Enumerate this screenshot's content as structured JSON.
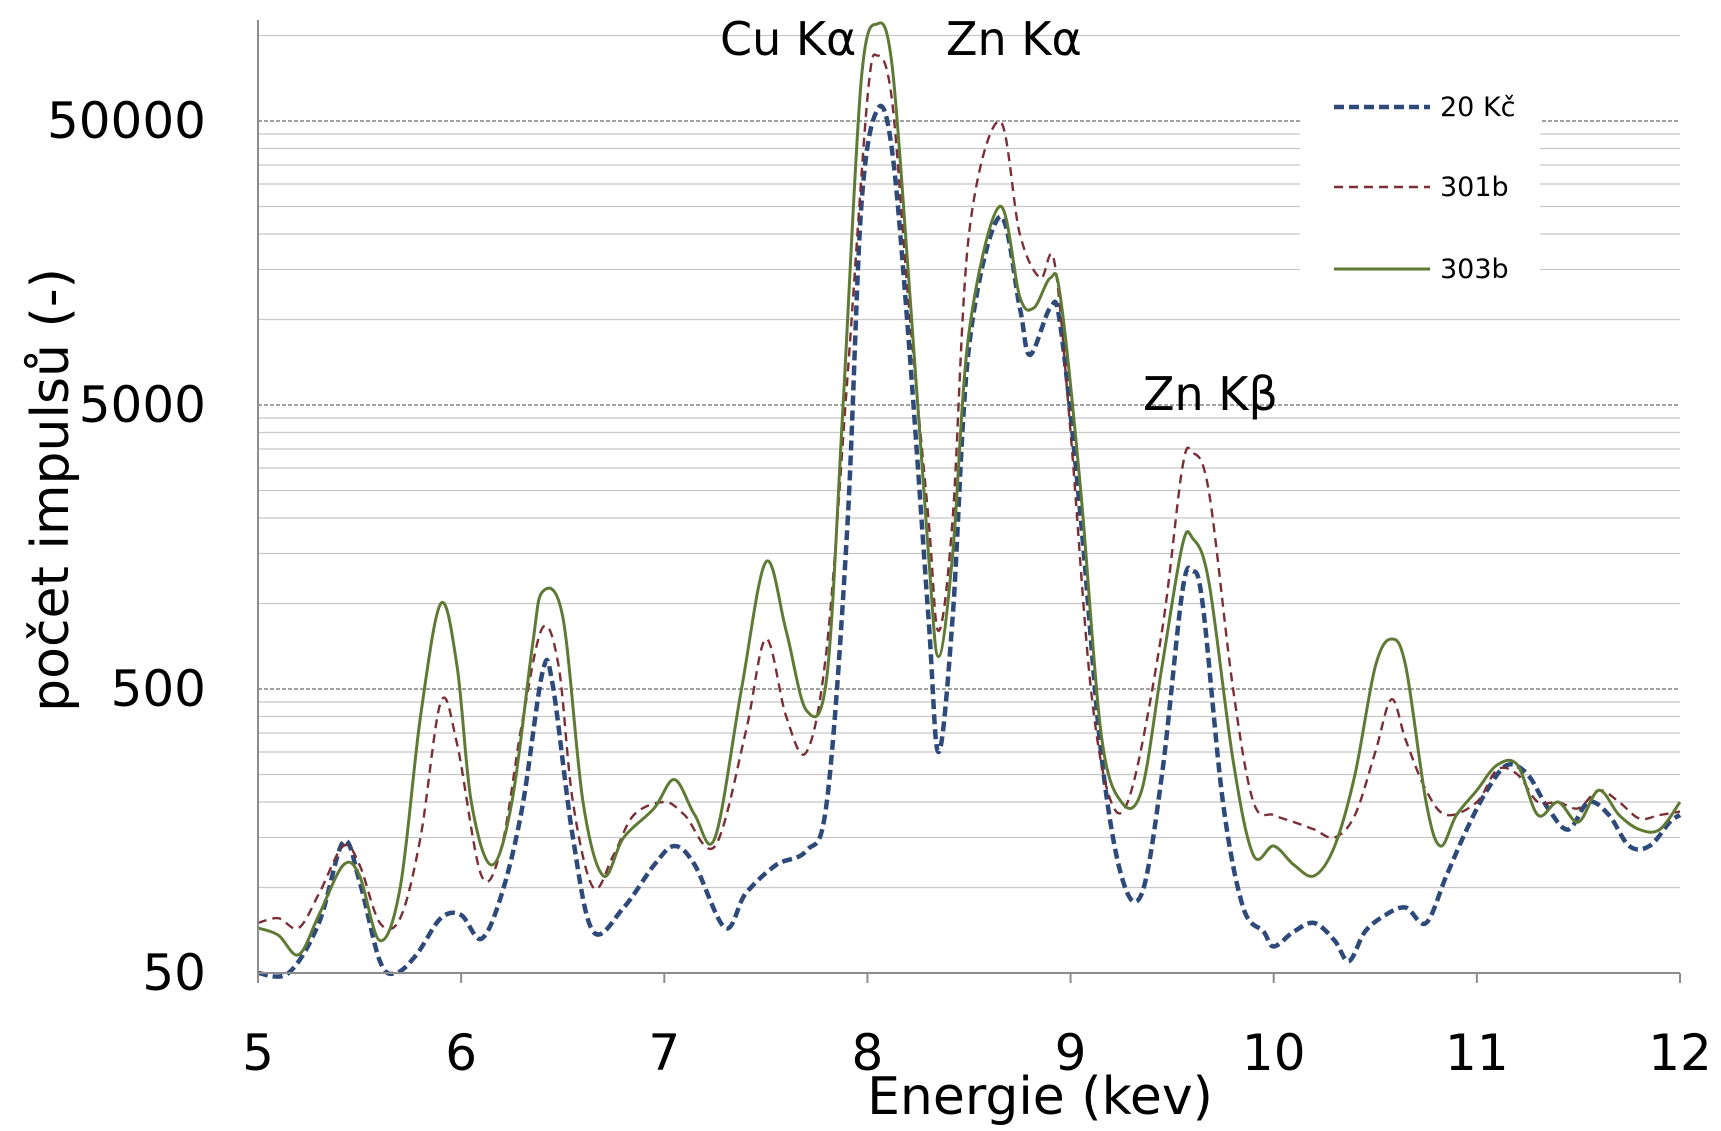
{
  "chart_data": {
    "type": "line",
    "xlabel": "Energie (kev)",
    "ylabel": "počet impulsů  (-)",
    "xlim": [
      5,
      12
    ],
    "ylim": [
      50,
      130000
    ],
    "yscale": "log",
    "x_ticks": [
      "5",
      "6",
      "7",
      "8",
      "9",
      "10",
      "11",
      "12"
    ],
    "y_ticks": [
      "50",
      "500",
      "5000",
      "50000"
    ],
    "grid": "horizontal",
    "legend_position": "top-right",
    "annotations": [
      {
        "text": "Cu Kα",
        "x": 7.85,
        "y": 95000
      },
      {
        "text": "Zn Kα",
        "x": 8.8,
        "y": 95000
      },
      {
        "text": "Zn Kβ",
        "x": 9.8,
        "y": 4800
      }
    ],
    "series": [
      {
        "name": "20 Kč",
        "color": "#2e4a7a",
        "dash": "dashed",
        "points": [
          [
            5.0,
            50
          ],
          [
            5.15,
            45
          ],
          [
            5.3,
            75
          ],
          [
            5.42,
            145
          ],
          [
            5.5,
            105
          ],
          [
            5.6,
            55
          ],
          [
            5.68,
            48
          ],
          [
            5.78,
            58
          ],
          [
            5.9,
            78
          ],
          [
            6.0,
            80
          ],
          [
            6.1,
            66
          ],
          [
            6.2,
            95
          ],
          [
            6.3,
            190
          ],
          [
            6.4,
            570
          ],
          [
            6.45,
            520
          ],
          [
            6.55,
            150
          ],
          [
            6.65,
            70
          ],
          [
            6.8,
            85
          ],
          [
            6.95,
            120
          ],
          [
            7.05,
            140
          ],
          [
            7.15,
            120
          ],
          [
            7.3,
            72
          ],
          [
            7.4,
            95
          ],
          [
            7.55,
            120
          ],
          [
            7.7,
            135
          ],
          [
            7.8,
            200
          ],
          [
            7.9,
            1800
          ],
          [
            7.97,
            25000
          ],
          [
            8.05,
            55000
          ],
          [
            8.12,
            40000
          ],
          [
            8.2,
            9000
          ],
          [
            8.3,
            900
          ],
          [
            8.35,
            300
          ],
          [
            8.42,
            900
          ],
          [
            8.5,
            8000
          ],
          [
            8.65,
            23000
          ],
          [
            8.75,
            11000
          ],
          [
            8.8,
            7500
          ],
          [
            8.9,
            11000
          ],
          [
            8.95,
            9500
          ],
          [
            9.05,
            2000
          ],
          [
            9.15,
            300
          ],
          [
            9.25,
            110
          ],
          [
            9.35,
            95
          ],
          [
            9.45,
            250
          ],
          [
            9.55,
            1100
          ],
          [
            9.6,
            1300
          ],
          [
            9.65,
            1000
          ],
          [
            9.75,
            200
          ],
          [
            9.85,
            85
          ],
          [
            9.95,
            70
          ],
          [
            10.0,
            62
          ],
          [
            10.1,
            70
          ],
          [
            10.2,
            75
          ],
          [
            10.3,
            65
          ],
          [
            10.37,
            55
          ],
          [
            10.45,
            70
          ],
          [
            10.55,
            80
          ],
          [
            10.65,
            85
          ],
          [
            10.75,
            75
          ],
          [
            10.85,
            110
          ],
          [
            10.95,
            160
          ],
          [
            11.05,
            220
          ],
          [
            11.15,
            270
          ],
          [
            11.25,
            250
          ],
          [
            11.35,
            190
          ],
          [
            11.45,
            160
          ],
          [
            11.55,
            200
          ],
          [
            11.65,
            180
          ],
          [
            11.75,
            140
          ],
          [
            11.85,
            140
          ],
          [
            11.95,
            170
          ],
          [
            12.0,
            180
          ]
        ]
      },
      {
        "name": "301b",
        "color": "#7a2e35",
        "dash": "dashed",
        "points": [
          [
            5.0,
            75
          ],
          [
            5.1,
            78
          ],
          [
            5.2,
            72
          ],
          [
            5.3,
            95
          ],
          [
            5.42,
            140
          ],
          [
            5.5,
            120
          ],
          [
            5.6,
            75
          ],
          [
            5.7,
            78
          ],
          [
            5.8,
            150
          ],
          [
            5.9,
            450
          ],
          [
            5.98,
            320
          ],
          [
            6.1,
            110
          ],
          [
            6.2,
            140
          ],
          [
            6.3,
            380
          ],
          [
            6.4,
            820
          ],
          [
            6.48,
            600
          ],
          [
            6.55,
            200
          ],
          [
            6.65,
            100
          ],
          [
            6.75,
            130
          ],
          [
            6.85,
            180
          ],
          [
            7.0,
            200
          ],
          [
            7.1,
            180
          ],
          [
            7.25,
            140
          ],
          [
            7.4,
            350
          ],
          [
            7.5,
            750
          ],
          [
            7.6,
            400
          ],
          [
            7.7,
            300
          ],
          [
            7.8,
            700
          ],
          [
            7.9,
            6000
          ],
          [
            8.0,
            60000
          ],
          [
            8.05,
            85000
          ],
          [
            8.12,
            60000
          ],
          [
            8.2,
            12000
          ],
          [
            8.3,
            2000
          ],
          [
            8.35,
            800
          ],
          [
            8.42,
            2000
          ],
          [
            8.5,
            20000
          ],
          [
            8.65,
            50000
          ],
          [
            8.75,
            20000
          ],
          [
            8.85,
            14000
          ],
          [
            8.92,
            16000
          ],
          [
            9.0,
            4000
          ],
          [
            9.1,
            500
          ],
          [
            9.2,
            200
          ],
          [
            9.3,
            220
          ],
          [
            9.45,
            800
          ],
          [
            9.55,
            3000
          ],
          [
            9.6,
            3400
          ],
          [
            9.68,
            2500
          ],
          [
            9.8,
            500
          ],
          [
            9.9,
            200
          ],
          [
            10.0,
            180
          ],
          [
            10.1,
            170
          ],
          [
            10.2,
            160
          ],
          [
            10.3,
            150
          ],
          [
            10.4,
            180
          ],
          [
            10.5,
            300
          ],
          [
            10.58,
            460
          ],
          [
            10.65,
            330
          ],
          [
            10.75,
            220
          ],
          [
            10.85,
            180
          ],
          [
            11.0,
            200
          ],
          [
            11.1,
            260
          ],
          [
            11.2,
            250
          ],
          [
            11.3,
            200
          ],
          [
            11.4,
            200
          ],
          [
            11.5,
            190
          ],
          [
            11.6,
            220
          ],
          [
            11.7,
            200
          ],
          [
            11.8,
            175
          ],
          [
            11.9,
            180
          ],
          [
            12.0,
            185
          ]
        ]
      },
      {
        "name": "303b",
        "color": "#5f7a35",
        "dash": "solid",
        "points": [
          [
            5.0,
            72
          ],
          [
            5.1,
            68
          ],
          [
            5.2,
            58
          ],
          [
            5.3,
            80
          ],
          [
            5.42,
            120
          ],
          [
            5.5,
            110
          ],
          [
            5.6,
            65
          ],
          [
            5.7,
            100
          ],
          [
            5.8,
            400
          ],
          [
            5.9,
            1000
          ],
          [
            5.98,
            600
          ],
          [
            6.05,
            200
          ],
          [
            6.15,
            120
          ],
          [
            6.25,
            200
          ],
          [
            6.35,
            700
          ],
          [
            6.4,
            1100
          ],
          [
            6.5,
            900
          ],
          [
            6.6,
            200
          ],
          [
            6.7,
            110
          ],
          [
            6.8,
            150
          ],
          [
            6.95,
            190
          ],
          [
            7.05,
            240
          ],
          [
            7.15,
            180
          ],
          [
            7.25,
            150
          ],
          [
            7.38,
            500
          ],
          [
            7.5,
            1400
          ],
          [
            7.6,
            800
          ],
          [
            7.7,
            420
          ],
          [
            7.8,
            550
          ],
          [
            7.88,
            5000
          ],
          [
            7.97,
            70000
          ],
          [
            8.05,
            110000
          ],
          [
            8.12,
            80000
          ],
          [
            8.2,
            15000
          ],
          [
            8.3,
            1500
          ],
          [
            8.35,
            650
          ],
          [
            8.42,
            1500
          ],
          [
            8.5,
            9000
          ],
          [
            8.65,
            25000
          ],
          [
            8.75,
            12000
          ],
          [
            8.82,
            11000
          ],
          [
            8.9,
            14000
          ],
          [
            8.95,
            12000
          ],
          [
            9.05,
            2500
          ],
          [
            9.15,
            350
          ],
          [
            9.25,
            200
          ],
          [
            9.35,
            220
          ],
          [
            9.45,
            600
          ],
          [
            9.55,
            1600
          ],
          [
            9.6,
            1700
          ],
          [
            9.68,
            1200
          ],
          [
            9.8,
            280
          ],
          [
            9.9,
            130
          ],
          [
            10.0,
            140
          ],
          [
            10.1,
            120
          ],
          [
            10.2,
            110
          ],
          [
            10.3,
            140
          ],
          [
            10.4,
            250
          ],
          [
            10.5,
            600
          ],
          [
            10.58,
            750
          ],
          [
            10.65,
            600
          ],
          [
            10.75,
            200
          ],
          [
            10.82,
            140
          ],
          [
            10.9,
            180
          ],
          [
            11.0,
            220
          ],
          [
            11.1,
            270
          ],
          [
            11.2,
            270
          ],
          [
            11.3,
            180
          ],
          [
            11.4,
            200
          ],
          [
            11.5,
            170
          ],
          [
            11.6,
            220
          ],
          [
            11.7,
            180
          ],
          [
            11.8,
            160
          ],
          [
            11.9,
            160
          ],
          [
            12.0,
            200
          ]
        ]
      }
    ]
  }
}
